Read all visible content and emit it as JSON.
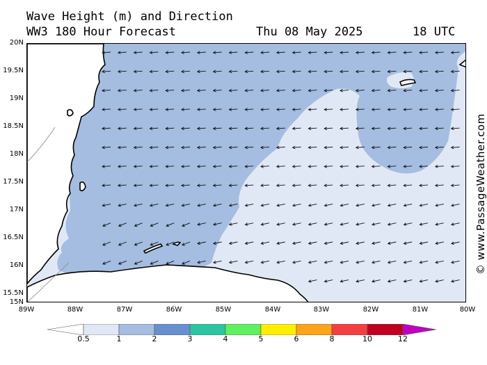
{
  "header": {
    "title": "Wave Height (m) and Direction",
    "model_line": "WW3 180 Hour Forecast",
    "date": "Thu 08 May 2025",
    "time": "18 UTC"
  },
  "axes": {
    "lat_labels": [
      "20N",
      "19.5N",
      "19N",
      "18.5N",
      "18N",
      "17.5N",
      "17N",
      "16.5N",
      "16N",
      "15.5N",
      "15N"
    ],
    "lon_labels": [
      "89W",
      "88W",
      "87W",
      "86W",
      "85W",
      "84W",
      "83W",
      "82W",
      "81W",
      "80W"
    ],
    "lat_range": [
      15,
      20
    ],
    "lon_range": [
      -89,
      -80
    ]
  },
  "colorbar": {
    "levels": [
      "0.5",
      "1",
      "2",
      "3",
      "4",
      "5",
      "6",
      "8",
      "10",
      "12"
    ],
    "colors": [
      "#e1e8f5",
      "#a4bde0",
      "#6890d0",
      "#2dc5a0",
      "#5ef05e",
      "#ffee00",
      "#ffa31a",
      "#f24040",
      "#c00020",
      "#c000c0"
    ]
  },
  "map": {
    "sea_color_low": "#e1e8f5",
    "sea_color_mid": "#a4bde0",
    "arrow_direction": "westward, turning south-westward near the coast"
  },
  "credit": "© www.PassageWeather.com"
}
